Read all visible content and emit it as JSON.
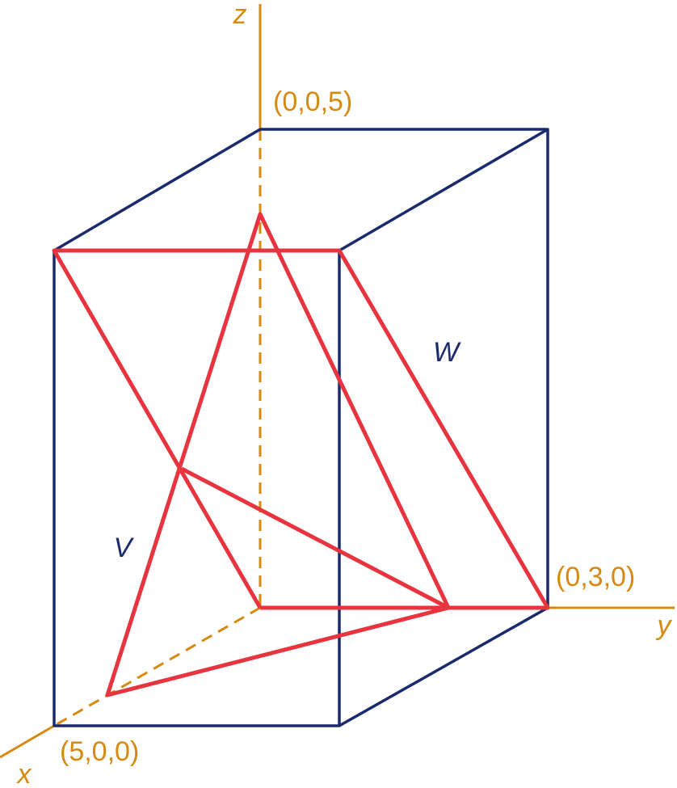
{
  "axes": {
    "z": "z",
    "y": "y",
    "x": "x"
  },
  "points": {
    "z_point": "(0,0,5)",
    "y_point": "(0,3,0)",
    "x_point": "(5,0,0)"
  },
  "solids": {
    "v": "V",
    "w": "W"
  }
}
